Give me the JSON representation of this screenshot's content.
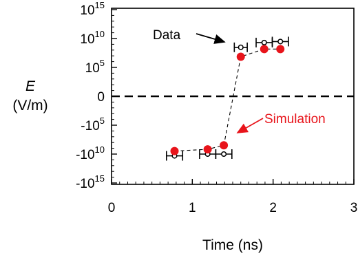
{
  "chart_data": {
    "type": "scatter",
    "title": "",
    "xlabel": "Time (ns)",
    "ylabel_symbol": "E",
    "ylabel_unit": "(V/m)",
    "xlim": [
      0,
      3
    ],
    "x_ticks": [
      "0",
      "1",
      "2",
      "3"
    ],
    "y_ticks": [
      {
        "base": "10",
        "exp": "15",
        "value": 1000000000000000.0
      },
      {
        "base": "10",
        "exp": "10",
        "value": 10000000000.0
      },
      {
        "base": "10",
        "exp": "5",
        "value": 100000.0
      },
      {
        "base": "0",
        "exp": "",
        "value": 0
      },
      {
        "base": "-10",
        "exp": "5",
        "value": -100000.0
      },
      {
        "base": "-10",
        "exp": "10",
        "value": -10000000000.0
      },
      {
        "base": "-10",
        "exp": "15",
        "value": -1000000000000000.0
      }
    ],
    "y_scale": "symmetric-log (log magnitude above and below zero)",
    "grid": false,
    "zero_line": "dashed",
    "annotations": [
      {
        "text": "Data",
        "color": "#000000"
      },
      {
        "text": "Simulation",
        "color": "#e8141b"
      }
    ],
    "series": [
      {
        "name": "Data",
        "marker": "open circle",
        "color": "#000000",
        "error_bars": "horizontal",
        "points": [
          {
            "x": 0.78,
            "y": -20000000000.0,
            "xerr": 0.1
          },
          {
            "x": 1.19,
            "y": -10000000000.0,
            "xerr": 0.1
          },
          {
            "x": 1.39,
            "y": -10000000000.0,
            "xerr": 0.1
          },
          {
            "x": 1.6,
            "y": 300000000.0,
            "xerr": 0.08
          },
          {
            "x": 1.89,
            "y": 2000000000.0,
            "xerr": 0.1
          },
          {
            "x": 2.09,
            "y": 3000000000.0,
            "xerr": 0.1
          }
        ]
      },
      {
        "name": "Simulation",
        "marker": "filled circle",
        "color": "#e8141b",
        "connector": "dashed",
        "points": [
          {
            "x": 0.78,
            "y": -3000000000.0
          },
          {
            "x": 1.19,
            "y": -1500000000.0
          },
          {
            "x": 1.39,
            "y": -300000000.0
          },
          {
            "x": 1.6,
            "y": 7000000.0
          },
          {
            "x": 1.89,
            "y": 150000000.0
          },
          {
            "x": 2.09,
            "y": 150000000.0
          }
        ]
      }
    ]
  }
}
